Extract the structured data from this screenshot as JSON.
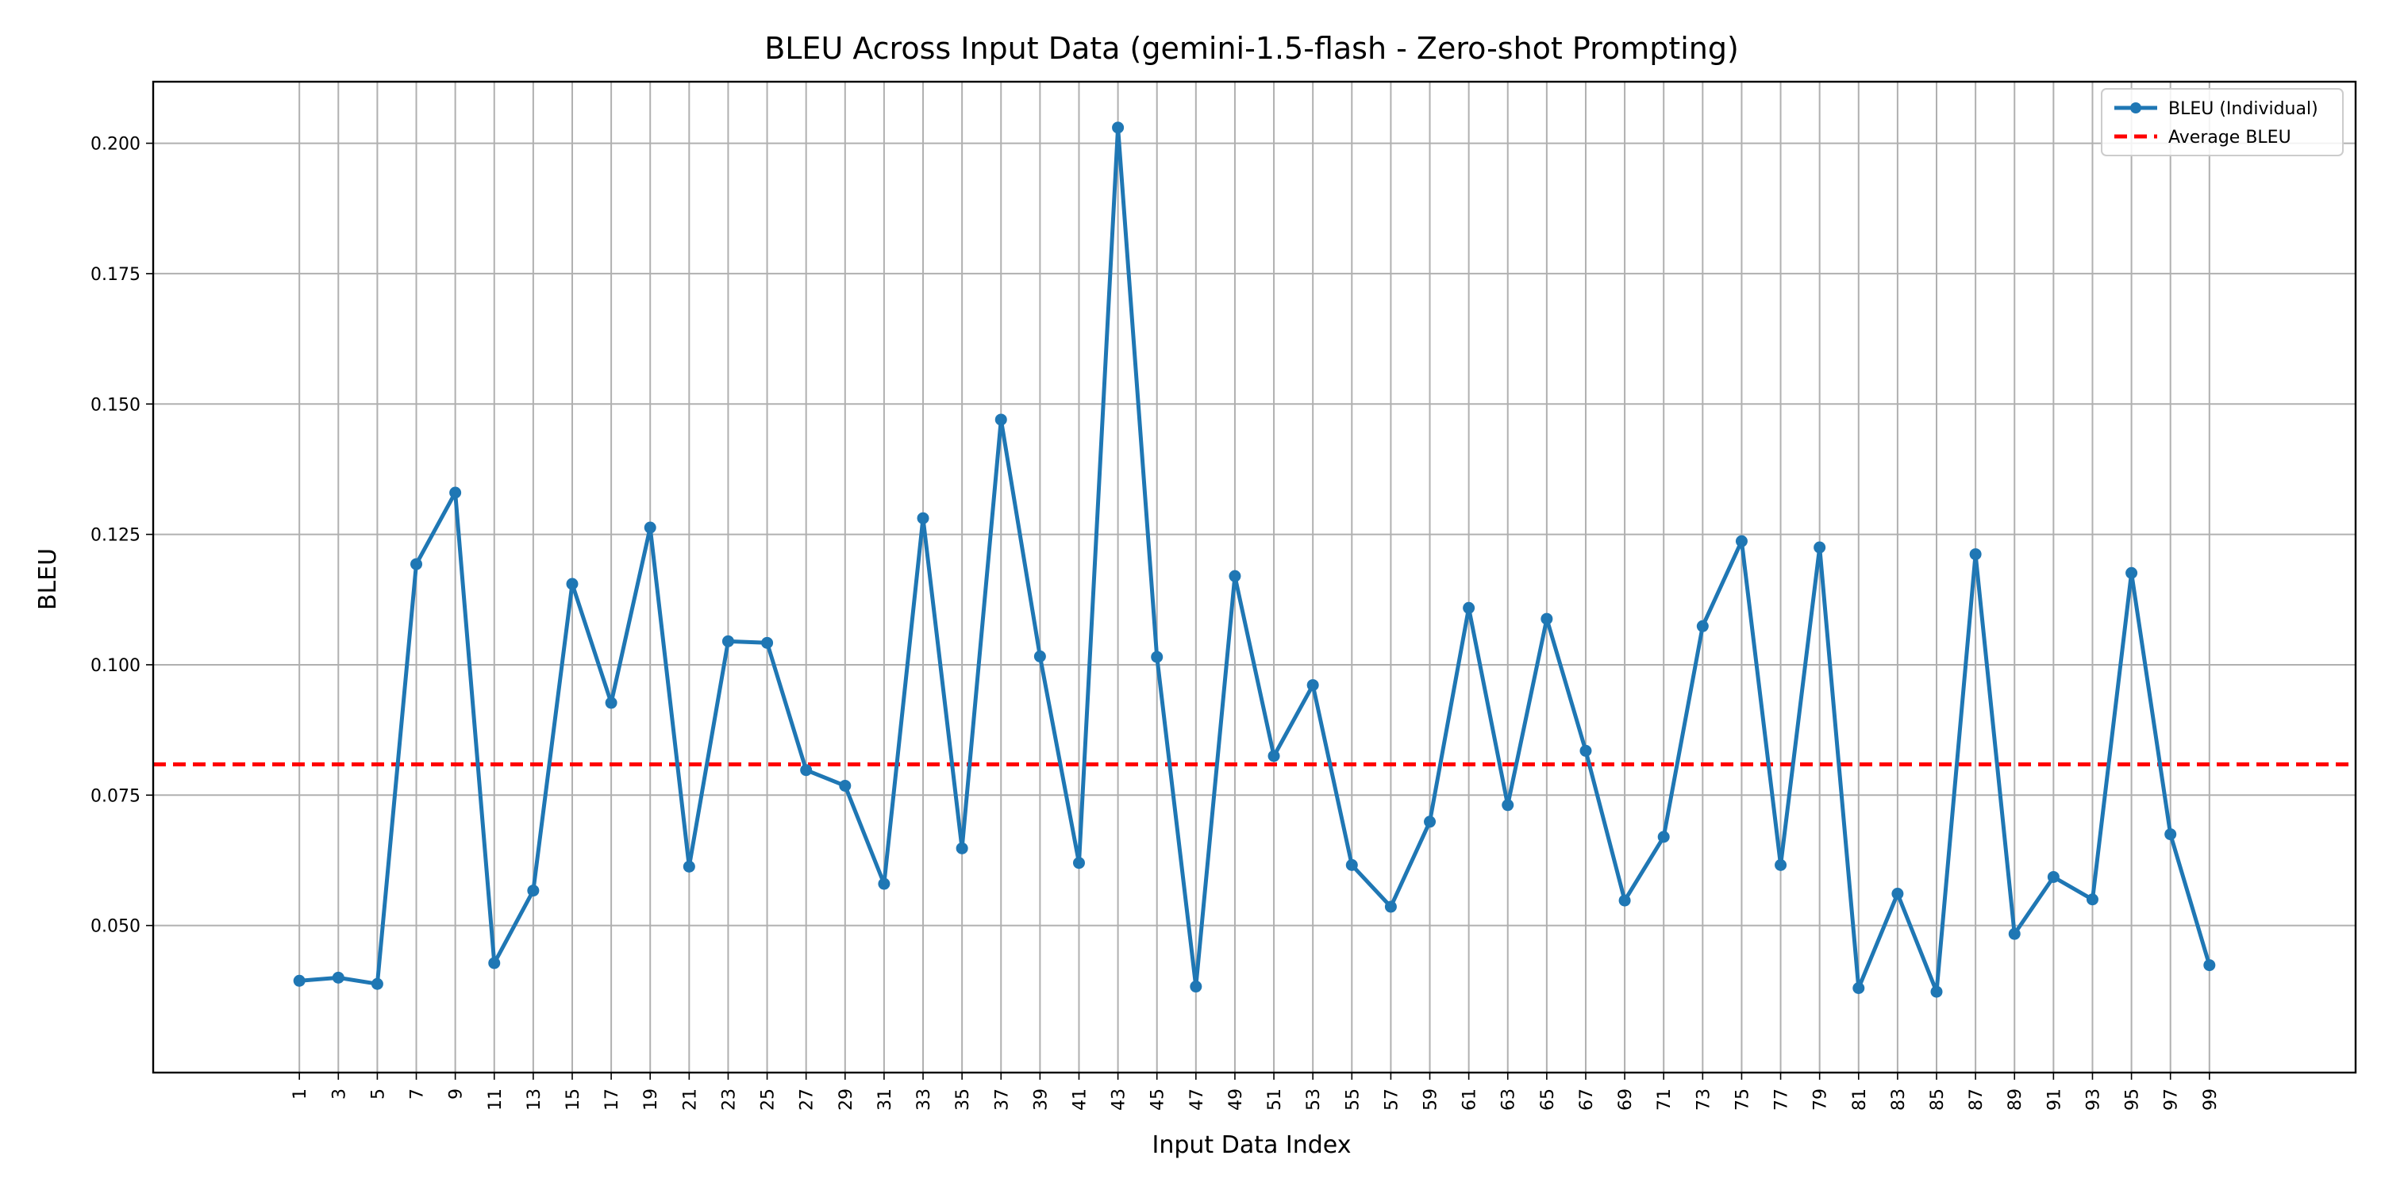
{
  "chart_data": {
    "type": "line",
    "title": "BLEU Across Input Data (gemini-1.5-flash - Zero-shot Prompting)",
    "xlabel": "Input Data Index",
    "ylabel": "BLEU",
    "x": [
      1,
      3,
      5,
      7,
      9,
      11,
      13,
      15,
      17,
      19,
      21,
      23,
      25,
      27,
      29,
      31,
      33,
      35,
      37,
      39,
      41,
      43,
      45,
      47,
      49,
      51,
      53,
      55,
      57,
      59,
      61,
      63,
      65,
      67,
      69,
      71,
      73,
      75,
      77,
      79,
      81,
      83,
      85,
      87,
      89,
      91,
      93,
      95,
      97,
      99
    ],
    "xticks": [
      1,
      3,
      5,
      7,
      9,
      11,
      13,
      15,
      17,
      19,
      21,
      23,
      25,
      27,
      29,
      31,
      33,
      35,
      37,
      39,
      41,
      43,
      45,
      47,
      49,
      51,
      53,
      55,
      57,
      59,
      61,
      63,
      65,
      67,
      69,
      71,
      73,
      75,
      77,
      79,
      81,
      83,
      85,
      87,
      89,
      91,
      93,
      95,
      97,
      99
    ],
    "yticks": [
      "0.050",
      "0.075",
      "0.100",
      "0.125",
      "0.150",
      "0.175",
      "0.200"
    ],
    "xlim": [
      -6.5,
      106.5
    ],
    "ylim": [
      0.0218,
      0.2118
    ],
    "grid": true,
    "legend_position": "top-right",
    "series": [
      {
        "name": "BLEU (Individual)",
        "color": "#1f77b4",
        "style": "solid-with-markers",
        "values": [
          0.0394,
          0.04,
          0.0388,
          0.1193,
          0.133,
          0.0428,
          0.0567,
          0.1155,
          0.0927,
          0.1263,
          0.0613,
          0.1045,
          0.1042,
          0.0798,
          0.0768,
          0.058,
          0.1281,
          0.0648,
          0.147,
          0.1016,
          0.062,
          0.203,
          0.1015,
          0.0383,
          0.117,
          0.0825,
          0.0961,
          0.0616,
          0.0536,
          0.0699,
          0.1109,
          0.0731,
          0.1088,
          0.0835,
          0.0548,
          0.067,
          0.1074,
          0.1237,
          0.0616,
          0.1225,
          0.038,
          0.0561,
          0.0373,
          0.1212,
          0.0484,
          0.0593,
          0.055,
          0.1176,
          0.0675,
          0.0424
        ]
      },
      {
        "name": "Average BLEU",
        "color": "#ff0000",
        "style": "dashed",
        "value": 0.0809
      }
    ]
  }
}
